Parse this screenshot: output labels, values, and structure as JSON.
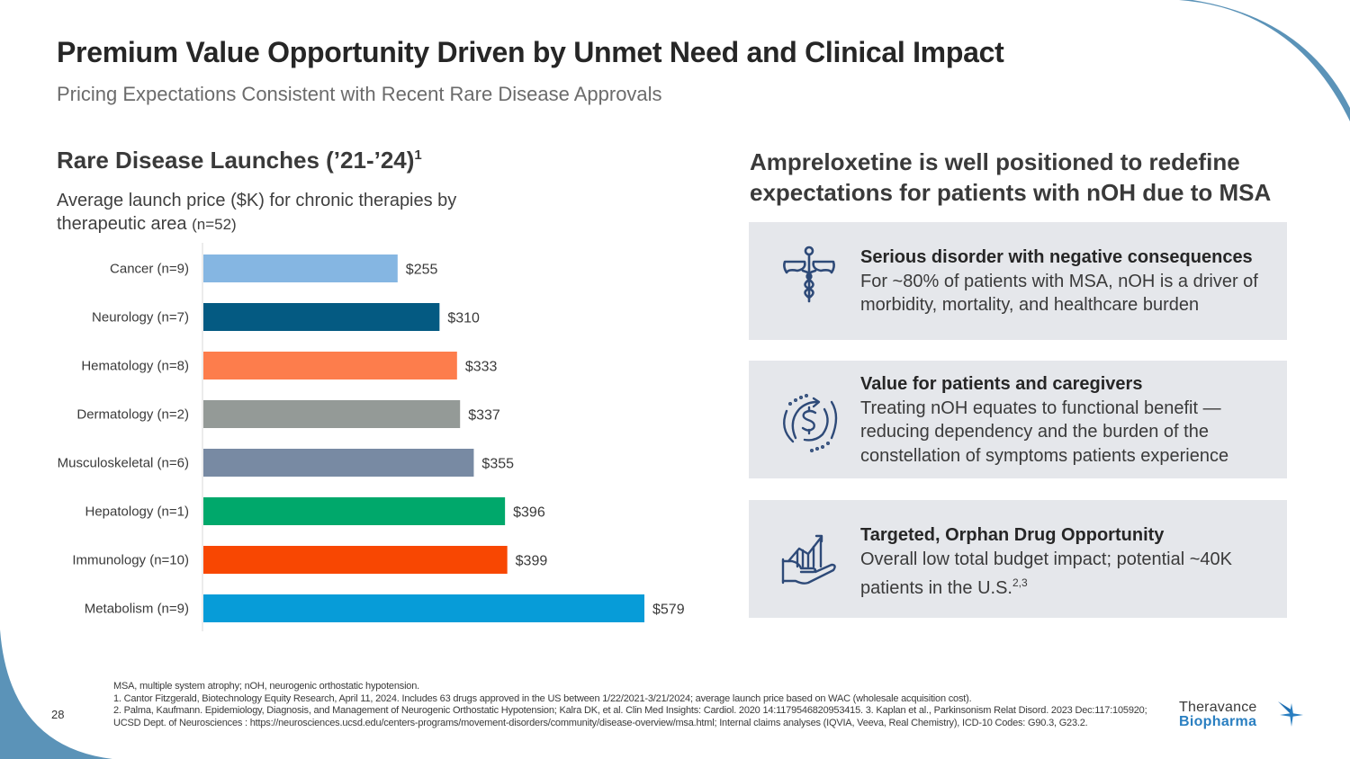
{
  "header": {
    "title": "Premium Value Opportunity Driven by Unmet Need and Clinical Impact",
    "subtitle": "Pricing Expectations Consistent with Recent Rare Disease Approvals"
  },
  "left": {
    "heading": "Rare Disease Launches (’21-’24)",
    "heading_sup": "1",
    "desc": "Average launch price ($K) for chronic therapies by therapeutic area ",
    "desc_n": "(n=52)"
  },
  "chart_data": {
    "type": "bar",
    "orientation": "horizontal",
    "title": "Rare Disease Launches ('21-'24)",
    "subtitle": "Average launch price ($K) for chronic therapies by therapeutic area (n=52)",
    "xlabel": "",
    "ylabel": "",
    "xlim": [
      0,
      600
    ],
    "grid": false,
    "legend": "none",
    "categories": [
      "Cancer (n=9)",
      "Neurology (n=7)",
      "Hematology (n=8)",
      "Dermatology (n=2)",
      "Musculoskeletal (n=6)",
      "Hepatology (n=1)",
      "Immunology (n=10)",
      "Metabolism (n=9)"
    ],
    "values": [
      255,
      310,
      333,
      337,
      355,
      396,
      399,
      579
    ],
    "value_labels": [
      "$255",
      "$310",
      "$333",
      "$337",
      "$355",
      "$396",
      "$399",
      "$579"
    ],
    "colors": [
      "#85b6e2",
      "#045a82",
      "#fd7d4c",
      "#949a97",
      "#788aa3",
      "#00a86b",
      "#f84702",
      "#079cd8"
    ]
  },
  "right": {
    "heading": "Ampreloxetine is well positioned to redefine expectations for patients with nOH due to MSA",
    "cards": [
      {
        "icon": "caduceus-icon",
        "title": "Serious disorder with negative consequences",
        "body": "For ~80% of patients with MSA, nOH is a driver of morbidity, mortality, and healthcare burden"
      },
      {
        "icon": "dollar-cycle-icon",
        "title": "Value for patients and caregivers",
        "body": "Treating nOH equates to functional benefit — reducing dependency and the burden of the constellation of symptoms patients experience"
      },
      {
        "icon": "hand-growth-chart-icon",
        "title": "Targeted, Orphan Drug Opportunity",
        "body": "Overall low total budget impact; potential ~40K patients in the U.S.",
        "sup": "2,3"
      }
    ]
  },
  "footer": {
    "page_number": "28",
    "footnotes": [
      "MSA, multiple system atrophy; nOH, neurogenic orthostatic hypotension.",
      "1. Cantor Fitzgerald, Biotechnology Equity Research, April 11, 2024.  Includes 63 drugs approved in the US between 1/22/2021-3/21/2024; average launch price based on WAC (wholesale acquisition cost).",
      "2. Palma, Kaufmann. Epidemiology, Diagnosis, and Management of Neurogenic Orthostatic Hypotension; Kalra DK, et al. Clin Med Insights: Cardiol. 2020 14:1179546820953415. 3. Kaplan et al., Parkinsonism Relat Disord. 2023 Dec:117:105920; UCSD Dept. of Neurosciences : https://neurosciences.ucsd.edu/centers-programs/movement-disorders/community/disease-overview/msa.html; Internal claims analyses (IQVIA, Veeva, Real Chemistry), ICD-10 Codes: G90.3, G23.2."
    ],
    "logo_line1": "Theravance",
    "logo_line2": "Biopharma"
  },
  "colors": {
    "accent_blue": "#5b93b8",
    "card_bg": "#e5e7eb",
    "icon_navy": "#2e4a78",
    "logo_blue": "#2a7fc1"
  }
}
